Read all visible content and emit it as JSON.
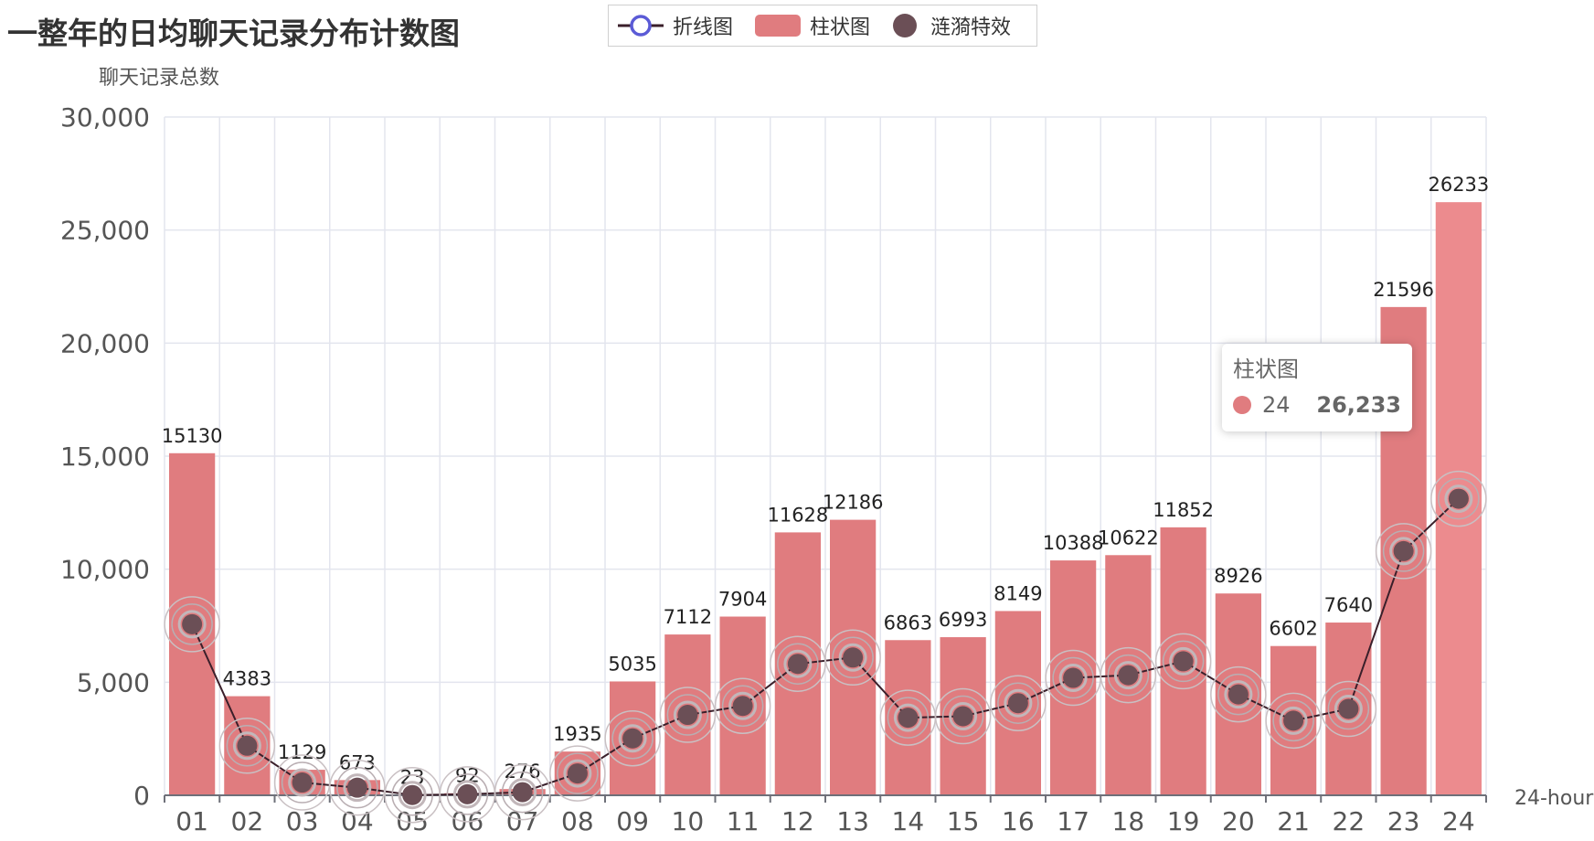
{
  "title": "一整年的日均聊天记录分布计数图",
  "legend": {
    "items": [
      {
        "label": "折线图",
        "color": "#5b5bd6",
        "icon": "line-circle-icon"
      },
      {
        "label": "柱状图",
        "color": "#e07c7f",
        "icon": "bar-rect-icon"
      },
      {
        "label": "涟漪特效",
        "color": "#6b4f56",
        "icon": "ripple-dot-icon"
      }
    ]
  },
  "tooltip": {
    "series": "柱状图",
    "category": "24",
    "value": "26,233"
  },
  "chart_data": {
    "type": "bar",
    "title": "一整年的日均聊天记录分布计数图",
    "xlabel": "24-hour",
    "ylabel": "聊天记录总数",
    "ylim": [
      0,
      30000
    ],
    "yticks": [
      "0",
      "5,000",
      "10,000",
      "15,000",
      "20,000",
      "25,000",
      "30,000"
    ],
    "categories": [
      "01",
      "02",
      "03",
      "04",
      "05",
      "06",
      "07",
      "08",
      "09",
      "10",
      "11",
      "12",
      "13",
      "14",
      "15",
      "16",
      "17",
      "18",
      "19",
      "20",
      "21",
      "22",
      "23",
      "24"
    ],
    "series": [
      {
        "name": "柱状图",
        "type": "bar",
        "color": "#e07c7f",
        "values": [
          15130,
          4383,
          1129,
          673,
          23,
          92,
          276,
          1935,
          5035,
          7112,
          7904,
          11628,
          12186,
          6863,
          6993,
          8149,
          10388,
          10622,
          11852,
          8926,
          6602,
          7640,
          21596,
          26233
        ]
      },
      {
        "name": "折线图",
        "type": "line",
        "color": "#3a1f2a",
        "values": [
          7565,
          2191.5,
          564.5,
          336.5,
          11.5,
          46,
          138,
          967.5,
          2517.5,
          3556,
          3952,
          5814,
          6093,
          3431.5,
          3496.5,
          4074.5,
          5194,
          5311,
          5926,
          4463,
          3301,
          3820,
          10798,
          13116.5
        ]
      },
      {
        "name": "涟漪特效",
        "type": "effectScatter",
        "color": "#6b4f56",
        "values": [
          7565,
          2191.5,
          564.5,
          336.5,
          11.5,
          46,
          138,
          967.5,
          2517.5,
          3556,
          3952,
          5814,
          6093,
          3431.5,
          3496.5,
          4074.5,
          5194,
          5311,
          5926,
          4463,
          3301,
          3820,
          10798,
          13116.5
        ]
      }
    ],
    "grid": true,
    "legend_position": "top"
  }
}
